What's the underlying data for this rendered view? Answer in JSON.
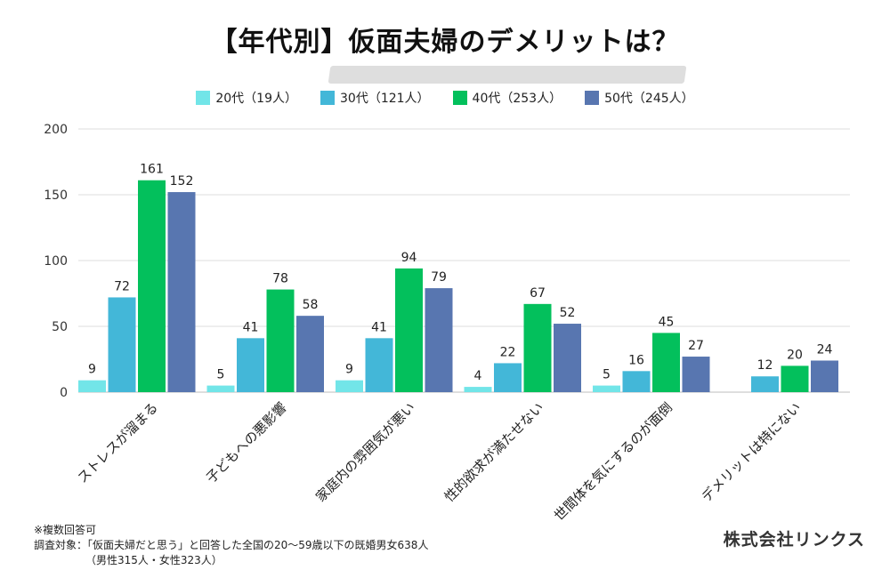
{
  "title": "【年代別】仮面夫婦のデメリットは？",
  "chart_data": {
    "type": "bar",
    "title": "【年代別】仮面夫婦のデメリットは？",
    "categories": [
      "ストレスが溜まる",
      "子どもへの悪影響",
      "家庭内の雰囲気が悪い",
      "性的欲求が満たせない",
      "世間体を気にするのが面倒",
      "デメリットは特にない"
    ],
    "series": [
      {
        "name": "20代（19人）",
        "color": "#72e5e8",
        "values": [
          9,
          5,
          9,
          4,
          5,
          0
        ],
        "labels": [
          "9",
          "5",
          "9",
          "4",
          "5",
          ""
        ]
      },
      {
        "name": "30代（121人）",
        "color": "#43b7d8",
        "values": [
          72,
          41,
          41,
          22,
          16,
          12
        ],
        "labels": [
          "72",
          "41",
          "41",
          "22",
          "16",
          "12"
        ]
      },
      {
        "name": "40代（253人）",
        "color": "#03c05c",
        "values": [
          161,
          78,
          94,
          67,
          45,
          20
        ],
        "labels": [
          "161",
          "78",
          "94",
          "67",
          "45",
          "20"
        ]
      },
      {
        "name": "50代（245人）",
        "color": "#5876b0",
        "values": [
          152,
          58,
          79,
          52,
          27,
          24
        ],
        "labels": [
          "152",
          "58",
          "79",
          "52",
          "27",
          "24"
        ]
      }
    ],
    "ylim": [
      0,
      200
    ],
    "yticks": [
      0,
      50,
      100,
      150,
      200
    ],
    "ytick_labels": [
      "0",
      "50",
      "100",
      "150",
      "200"
    ],
    "grid": true,
    "legend_position": "top-center"
  },
  "legend": [
    {
      "label": "20代（19人）",
      "color": "#72e5e8"
    },
    {
      "label": "30代（121人）",
      "color": "#43b7d8"
    },
    {
      "label": "40代（253人）",
      "color": "#03c05c"
    },
    {
      "label": "50代（245人）",
      "color": "#5876b0"
    }
  ],
  "notes": {
    "line1": "※複数回答可",
    "line2": "調査対象：「仮面夫婦だと思う」と回答した全国の20〜59歳以下の既婚男女638人",
    "line3": "（男性315人・女性323人）"
  },
  "company": "株式会社リンクス"
}
